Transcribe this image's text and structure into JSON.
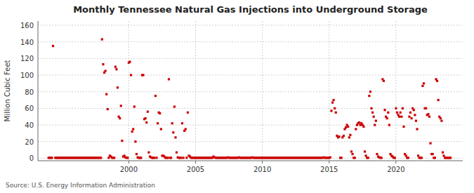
{
  "chart_data": {
    "type": "scatter",
    "title": "Monthly Tennessee Natural Gas Injections into Underground Storage",
    "y_label": "Million Cubic Feet",
    "annotations": [
      "Source: U.S. Energy Information Administration"
    ],
    "color": "#cc0000",
    "marker": "square",
    "grid": true,
    "xlim": [
      1993.2,
      2025.0
    ],
    "xticks": [
      2000,
      2005,
      2010,
      2015,
      2020
    ],
    "ylim": [
      -3,
      165
    ],
    "yticks": [
      0,
      20,
      40,
      60,
      80,
      100,
      120,
      140,
      160
    ],
    "x": [
      1994.0,
      1994.083,
      1994.167,
      1994.25,
      1994.333,
      1994.5,
      1994.583,
      1994.667,
      1994.75,
      1994.833,
      1994.917,
      1995.0,
      1995.083,
      1995.167,
      1995.25,
      1995.333,
      1995.417,
      1995.5,
      1995.583,
      1995.667,
      1995.75,
      1995.833,
      1995.917,
      1996.0,
      1996.083,
      1996.167,
      1996.25,
      1996.333,
      1996.417,
      1996.5,
      1996.583,
      1996.667,
      1996.75,
      1996.833,
      1996.917,
      1997.0,
      1997.083,
      1997.167,
      1997.25,
      1997.333,
      1997.417,
      1997.5,
      1997.583,
      1997.667,
      1997.75,
      1997.833,
      1997.917,
      1998.0,
      1998.083,
      1998.167,
      1998.25,
      1998.333,
      1998.417,
      1998.5,
      1998.583,
      1998.667,
      1998.75,
      1998.833,
      1998.917,
      1999.0,
      1999.083,
      1999.167,
      1999.25,
      1999.333,
      1999.417,
      1999.5,
      1999.583,
      1999.667,
      1999.75,
      1999.833,
      1999.917,
      2000.0,
      2000.083,
      2000.167,
      2000.25,
      2000.333,
      2000.417,
      2000.5,
      2000.583,
      2000.667,
      2000.75,
      2000.833,
      2000.917,
      2001.0,
      2001.083,
      2001.167,
      2001.25,
      2001.333,
      2001.417,
      2001.5,
      2001.583,
      2001.667,
      2001.75,
      2001.833,
      2001.917,
      2002.0,
      2002.083,
      2002.167,
      2002.25,
      2002.333,
      2002.417,
      2002.5,
      2002.583,
      2002.667,
      2002.75,
      2002.833,
      2002.917,
      2003.0,
      2003.083,
      2003.167,
      2003.25,
      2003.333,
      2003.417,
      2003.5,
      2003.583,
      2003.667,
      2003.75,
      2003.833,
      2003.917,
      2004.0,
      2004.083,
      2004.167,
      2004.25,
      2004.333,
      2004.417,
      2004.5,
      2004.583,
      2004.667,
      2004.75,
      2004.833,
      2004.917,
      2005.0,
      2005.083,
      2005.167,
      2005.25,
      2005.333,
      2005.417,
      2005.5,
      2005.583,
      2005.667,
      2005.75,
      2005.833,
      2005.917,
      2006.0,
      2006.083,
      2006.167,
      2006.25,
      2006.333,
      2006.417,
      2006.5,
      2006.583,
      2006.667,
      2006.75,
      2006.833,
      2006.917,
      2007.0,
      2007.083,
      2007.167,
      2007.25,
      2007.333,
      2007.417,
      2007.5,
      2007.583,
      2007.667,
      2007.75,
      2007.833,
      2007.917,
      2008.0,
      2008.083,
      2008.167,
      2008.25,
      2008.333,
      2008.417,
      2008.5,
      2008.583,
      2008.667,
      2008.75,
      2008.833,
      2008.917,
      2009.0,
      2009.083,
      2009.167,
      2009.25,
      2009.333,
      2009.417,
      2009.5,
      2009.583,
      2009.667,
      2009.75,
      2009.833,
      2009.917,
      2010.0,
      2010.083,
      2010.167,
      2010.25,
      2010.333,
      2010.417,
      2010.5,
      2010.583,
      2010.667,
      2010.75,
      2010.833,
      2010.917,
      2011.0,
      2011.083,
      2011.167,
      2011.25,
      2011.333,
      2011.417,
      2011.5,
      2011.583,
      2011.667,
      2011.75,
      2011.833,
      2011.917,
      2012.0,
      2012.083,
      2012.167,
      2012.25,
      2012.333,
      2012.417,
      2012.5,
      2012.583,
      2012.667,
      2012.75,
      2012.833,
      2012.917,
      2013.0,
      2013.083,
      2013.167,
      2013.25,
      2013.333,
      2013.417,
      2013.5,
      2013.583,
      2013.667,
      2013.75,
      2013.833,
      2013.917,
      2014.0,
      2014.083,
      2014.167,
      2014.25,
      2014.333,
      2014.417,
      2014.5,
      2014.583,
      2014.667,
      2014.75,
      2014.833,
      2014.917,
      2015.0,
      2015.083,
      2015.167,
      2015.25,
      2015.333,
      2015.417,
      2015.5,
      2015.583,
      2015.667,
      2015.75,
      2015.833,
      2015.917,
      2016.0,
      2016.083,
      2016.167,
      2016.25,
      2016.333,
      2016.417,
      2016.5,
      2016.583,
      2016.667,
      2016.75,
      2016.833,
      2016.917,
      2017.0,
      2017.083,
      2017.167,
      2017.25,
      2017.333,
      2017.417,
      2017.5,
      2017.583,
      2017.667,
      2017.75,
      2017.833,
      2017.917,
      2018.0,
      2018.083,
      2018.167,
      2018.25,
      2018.333,
      2018.417,
      2018.5,
      2018.583,
      2018.667,
      2018.75,
      2018.833,
      2018.917,
      2019.0,
      2019.083,
      2019.167,
      2019.25,
      2019.333,
      2019.417,
      2019.5,
      2019.583,
      2019.667,
      2019.75,
      2019.833,
      2019.917,
      2020.0,
      2020.083,
      2020.167,
      2020.25,
      2020.333,
      2020.417,
      2020.5,
      2020.583,
      2020.667,
      2020.75,
      2020.833,
      2020.917,
      2021.0,
      2021.083,
      2021.167,
      2021.25,
      2021.333,
      2021.417,
      2021.5,
      2021.583,
      2021.667,
      2021.75,
      2021.833,
      2021.917,
      2022.0,
      2022.083,
      2022.167,
      2022.25,
      2022.333,
      2022.417,
      2022.5,
      2022.583,
      2022.667,
      2022.75,
      2022.833,
      2022.917,
      2023.0,
      2023.083,
      2023.167,
      2023.25,
      2023.333,
      2023.417,
      2023.5,
      2023.583,
      2023.667,
      2023.75,
      2023.833,
      2023.917,
      2024.0,
      2024.083
    ],
    "values": [
      0.5,
      0.5,
      0.5,
      0.5,
      135,
      0.5,
      0.5,
      0.5,
      0.5,
      0.5,
      0.5,
      0.5,
      0.5,
      0.5,
      0.5,
      0.5,
      0.5,
      0.5,
      0.5,
      0.5,
      0.5,
      0.5,
      0.5,
      0.5,
      0.5,
      0.5,
      0.5,
      0.5,
      0.5,
      0.5,
      0.5,
      0.5,
      0.5,
      0.5,
      0.5,
      0.5,
      0.5,
      0.5,
      0.5,
      0.5,
      0.5,
      0.5,
      0.5,
      0.5,
      0.5,
      0.5,
      0.5,
      143,
      113,
      103,
      105,
      77,
      59,
      0.5,
      3,
      2,
      0.5,
      0.5,
      0.5,
      110,
      107,
      85,
      50,
      48,
      63,
      21,
      2,
      3,
      1,
      0.5,
      0.5,
      115,
      116,
      100,
      32,
      35,
      62,
      20,
      5,
      1,
      0.5,
      0.5,
      0.5,
      100,
      100,
      47,
      48,
      43,
      56,
      7,
      2,
      1,
      0.5,
      0.5,
      0.5,
      75,
      0.5,
      42,
      55,
      54,
      35,
      3,
      3,
      2,
      0.5,
      0.5,
      0.5,
      95,
      0.5,
      0.5,
      42,
      31,
      62,
      25,
      7,
      1,
      0.5,
      0.5,
      0.5,
      42,
      0.5,
      33,
      35,
      0.5,
      55,
      3,
      2,
      0.5,
      0.5,
      0.5,
      0.5,
      0.5,
      0.5,
      0.5,
      0.5,
      0.5,
      0.5,
      0.5,
      0.5,
      0.5,
      0.5,
      0.5,
      0.5,
      0.5,
      0.5,
      0.5,
      0.5,
      2,
      1,
      0.5,
      0.5,
      0.5,
      0.5,
      0.5,
      0.5,
      0.5,
      0.5,
      0.5,
      0.5,
      0.5,
      1,
      0.5,
      0.5,
      0.5,
      0.5,
      0.5,
      0.5,
      0.5,
      0.5,
      0.5,
      1,
      0.5,
      0.5,
      0.5,
      0.5,
      0.5,
      0.5,
      0.5,
      0.5,
      0.5,
      0.5,
      0.5,
      1,
      0.5,
      0.5,
      0.5,
      0.5,
      0.5,
      0.5,
      0.5,
      0.5,
      0.5,
      0.5,
      0.5,
      0.5,
      0.5,
      0.5,
      0.5,
      0.5,
      0.5,
      0.5,
      0.5,
      0.5,
      0.5,
      0.5,
      0.5,
      0.5,
      0.5,
      0.5,
      0.5,
      0.5,
      0.5,
      0.5,
      0.5,
      0.5,
      0.5,
      0.5,
      0.5,
      0.5,
      0.5,
      0.5,
      0.5,
      0.5,
      0.5,
      0.5,
      0.5,
      0.5,
      0.5,
      0.5,
      0.5,
      0.5,
      0.5,
      0.5,
      0.5,
      0.5,
      0.5,
      0.5,
      0.5,
      0.5,
      0.5,
      0.5,
      0.5,
      0.5,
      0.5,
      0.5,
      0.5,
      1,
      0.5,
      0.5,
      0.5,
      0.5,
      0.5,
      1,
      57,
      67,
      70,
      60,
      55,
      27,
      25,
      26,
      0.5,
      0.5,
      25,
      27,
      35,
      37,
      40,
      38,
      25,
      28,
      8,
      5,
      0.5,
      0.5,
      35,
      40,
      42,
      43,
      40,
      42,
      40,
      38,
      8,
      3,
      0.5,
      0.5,
      75,
      80,
      60,
      55,
      50,
      40,
      45,
      5,
      2,
      1,
      0.5,
      0.5,
      95,
      93,
      58,
      50,
      48,
      55,
      40,
      5,
      3,
      2,
      0.5,
      0.5,
      60,
      55,
      52,
      50,
      55,
      50,
      60,
      38,
      5,
      3,
      0.5,
      0.5,
      50,
      55,
      48,
      60,
      58,
      52,
      45,
      35,
      3,
      0.5,
      0.5,
      0.5,
      87,
      90,
      60,
      60,
      52,
      53,
      50,
      18,
      5,
      5,
      0.5,
      0.5,
      95,
      93,
      70,
      50,
      48,
      45,
      7,
      3,
      0.5,
      0.5,
      0.5,
      0.5,
      0.5,
      0.5
    ]
  }
}
